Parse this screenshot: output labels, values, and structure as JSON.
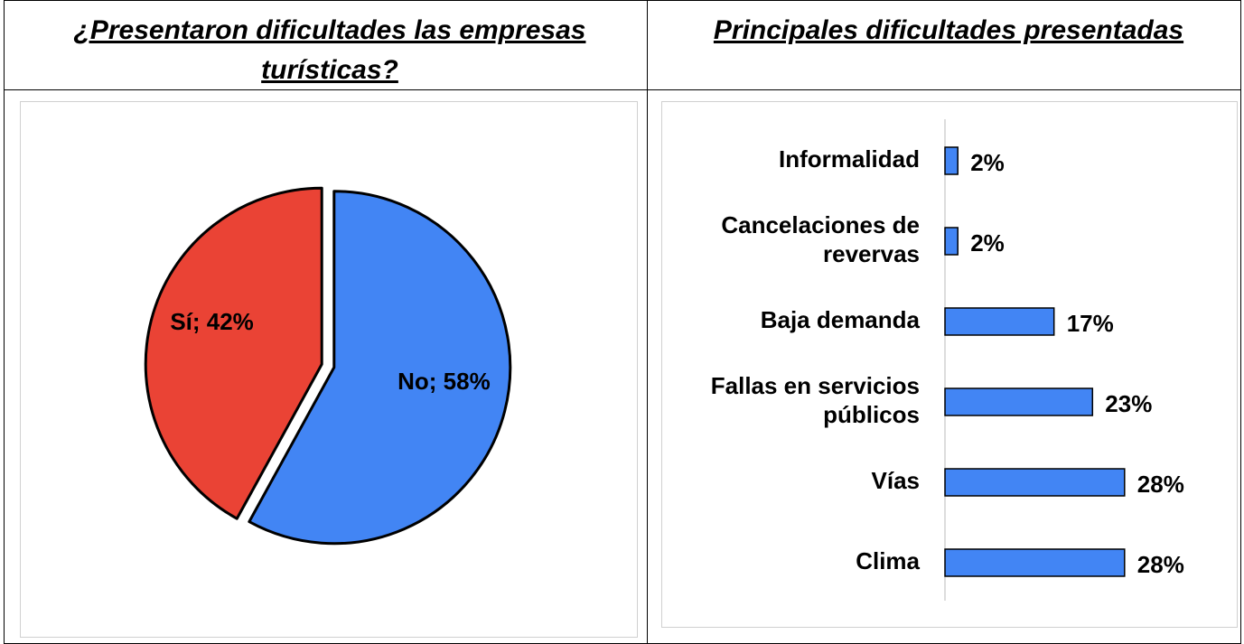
{
  "chart_data": [
    {
      "type": "pie",
      "title": "¿Presentaron dificultades las empresas turísticas?",
      "categories": [
        "Sí",
        "No"
      ],
      "values": [
        42,
        58
      ],
      "value_labels": [
        "Sí; 42%",
        "No; 58%"
      ],
      "colors": [
        "#ea4335",
        "#4285f4"
      ]
    },
    {
      "type": "barh",
      "title": "Principales dificultades presentadas",
      "categories": [
        "Informalidad",
        "Cancelaciones de revervas",
        "Baja demanda",
        "Fallas en servicios públicos",
        "Vías",
        "Clima"
      ],
      "values": [
        2,
        2,
        17,
        23,
        28,
        28
      ],
      "value_labels": [
        "2%",
        "2%",
        "17%",
        "23%",
        "28%",
        "28%"
      ],
      "color": "#4285f4"
    }
  ]
}
